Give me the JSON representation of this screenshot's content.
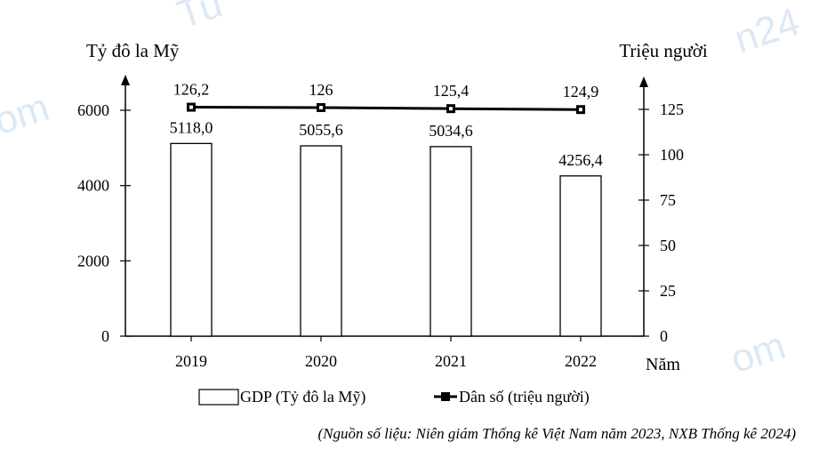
{
  "chart_data": {
    "type": "bar+line",
    "categories": [
      "2019",
      "2020",
      "2021",
      "2022"
    ],
    "xlabel": "Năm",
    "left_axis": {
      "label": "Tỷ đô la Mỹ",
      "ylim": [
        0,
        6000
      ],
      "ticks": [
        0,
        2000,
        4000,
        6000
      ]
    },
    "right_axis": {
      "label": "Triệu người",
      "ylim": [
        0,
        150
      ],
      "ticks": [
        0,
        25,
        50,
        75,
        100,
        125
      ]
    },
    "series": [
      {
        "name": "GDP (Tỷ đô la Mỹ)",
        "type": "bar",
        "axis": "left",
        "values": [
          5118.0,
          5055.6,
          5034.6,
          4256.4
        ],
        "labels": [
          "5118,0",
          "5055,6",
          "5034,6",
          "4256,4"
        ]
      },
      {
        "name": "Dân số (triệu người)",
        "type": "line",
        "axis": "right",
        "values": [
          126.2,
          126,
          125.4,
          124.9
        ],
        "labels": [
          "126,2",
          "126",
          "125,4",
          "124,9"
        ]
      }
    ],
    "source": "(Nguồn số liệu: Niên giám Thống kê Việt Nam năm 2023, NXB Thống kê 2024)",
    "colors": {
      "bar_fill": "#ffffff",
      "stroke": "#000000",
      "watermark": "#dbe9f6"
    }
  }
}
